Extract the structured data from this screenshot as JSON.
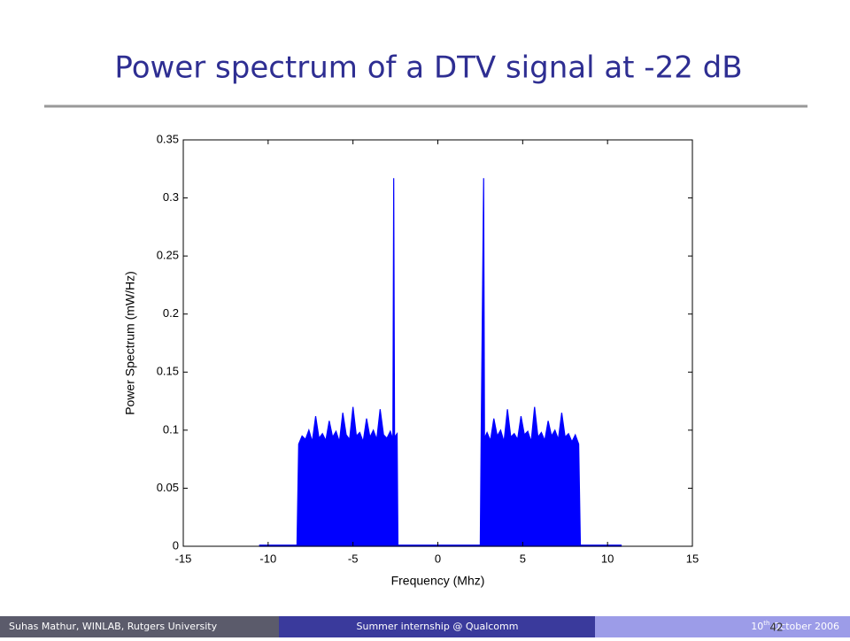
{
  "slide": {
    "title": "Power spectrum of a DTV signal at -22 dB",
    "footer": {
      "author": "Suhas Mathur, WINLAB, Rutgers University",
      "event": "Summer internship @ Qualcomm",
      "date_day": "10",
      "date_suffix": "th",
      "date_rest": "October 2006",
      "page": "42"
    }
  },
  "chart_data": {
    "type": "area",
    "color": "#0000ff",
    "xlabel": "Frequency (Mhz)",
    "ylabel": "Power Spectrum (mW/Hz)",
    "xlim": [
      -15,
      15
    ],
    "ylim": [
      0,
      0.35
    ],
    "xticks": [
      -15,
      -10,
      -5,
      0,
      5,
      10,
      15
    ],
    "yticks": [
      0,
      0.05,
      0.1,
      0.15,
      0.2,
      0.25,
      0.3,
      0.35
    ],
    "x": [
      -10.5,
      -8.3,
      -8.2,
      -8.0,
      -7.8,
      -7.6,
      -7.4,
      -7.2,
      -7.0,
      -6.8,
      -6.6,
      -6.4,
      -6.2,
      -6.0,
      -5.8,
      -5.6,
      -5.4,
      -5.2,
      -5.0,
      -4.8,
      -4.6,
      -4.4,
      -4.2,
      -4.0,
      -3.8,
      -3.6,
      -3.4,
      -3.2,
      -3.0,
      -2.8,
      -2.65,
      -2.6,
      -2.55,
      -2.4,
      -2.35,
      2.5,
      2.55,
      2.7,
      2.75,
      2.9,
      3.1,
      3.3,
      3.5,
      3.7,
      3.9,
      4.1,
      4.3,
      4.5,
      4.7,
      4.9,
      5.1,
      5.3,
      5.5,
      5.7,
      5.9,
      6.1,
      6.3,
      6.5,
      6.7,
      6.9,
      7.1,
      7.3,
      7.5,
      7.7,
      7.9,
      8.1,
      8.3,
      8.4,
      10.8
    ],
    "values": [
      0.001,
      0.001,
      0.088,
      0.095,
      0.092,
      0.1,
      0.09,
      0.112,
      0.093,
      0.097,
      0.091,
      0.108,
      0.094,
      0.099,
      0.09,
      0.115,
      0.096,
      0.092,
      0.12,
      0.095,
      0.098,
      0.09,
      0.11,
      0.094,
      0.1,
      0.092,
      0.118,
      0.096,
      0.093,
      0.099,
      0.092,
      0.317,
      0.094,
      0.097,
      0.001,
      0.001,
      0.09,
      0.317,
      0.093,
      0.098,
      0.091,
      0.11,
      0.095,
      0.1,
      0.09,
      0.118,
      0.094,
      0.097,
      0.092,
      0.112,
      0.096,
      0.099,
      0.09,
      0.12,
      0.094,
      0.098,
      0.091,
      0.108,
      0.095,
      0.1,
      0.092,
      0.115,
      0.094,
      0.097,
      0.09,
      0.096,
      0.088,
      0.001,
      0.001
    ]
  }
}
